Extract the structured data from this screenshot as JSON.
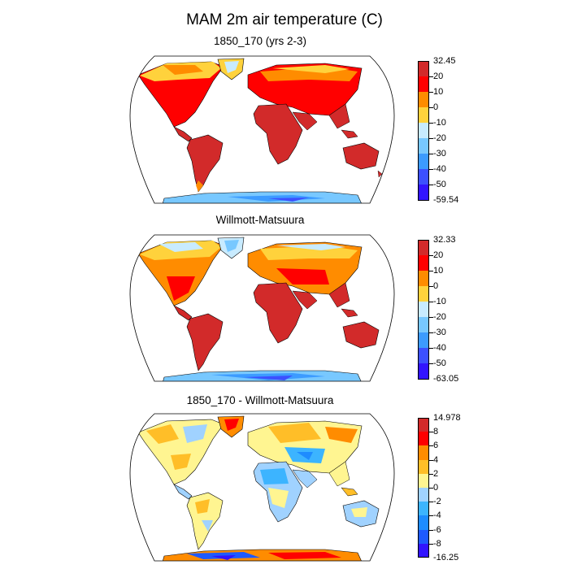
{
  "title": "MAM 2m air temperature (C)",
  "panels": [
    {
      "title": "1850_170 (yrs 2-3)",
      "colorbar": {
        "labels": [
          "32.45",
          "20",
          "10",
          "0",
          "-10",
          "-20",
          "-30",
          "-40",
          "-50",
          "-59.54"
        ],
        "colors": [
          "#d22a2a",
          "#ff0000",
          "#ff8c00",
          "#ffd23c",
          "#c8ebff",
          "#78c8ff",
          "#3c9bff",
          "#3c50ff",
          "#3214ff"
        ]
      }
    },
    {
      "title": "Willmott-Matsuura",
      "colorbar": {
        "labels": [
          "32.33",
          "20",
          "10",
          "0",
          "-10",
          "-20",
          "-30",
          "-40",
          "-50",
          "-63.05"
        ],
        "colors": [
          "#d22a2a",
          "#ff0000",
          "#ff8c00",
          "#ffd23c",
          "#c8ebff",
          "#78c8ff",
          "#3c9bff",
          "#3c50ff",
          "#3214ff"
        ]
      }
    },
    {
      "title": "1850_170 - Willmott-Matsuura",
      "colorbar": {
        "labels": [
          "14.978",
          "8",
          "6",
          "4",
          "2",
          "0",
          "-2",
          "-4",
          "-6",
          "-8",
          "-16.25"
        ],
        "colors": [
          "#d22a2a",
          "#ff0000",
          "#ff8c00",
          "#ffbe28",
          "#fff591",
          "#a0d2ff",
          "#3cb4ff",
          "#1e8cff",
          "#1e5aff",
          "#3214ff"
        ]
      }
    }
  ]
}
